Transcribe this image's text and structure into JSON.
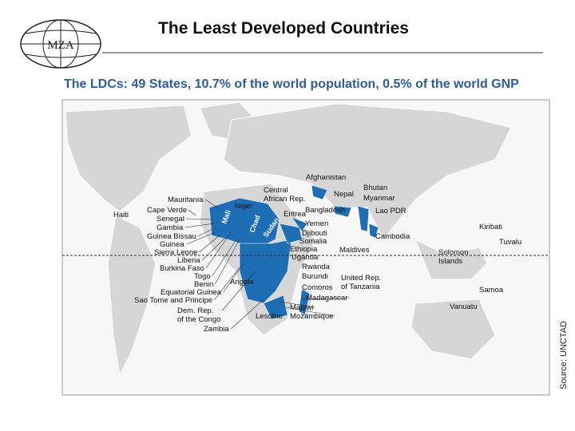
{
  "header": {
    "logo": "MZA",
    "title": "The Least Developed Countries"
  },
  "map": {
    "subtitle": "The LDCs: 49 States, 10.7% of the world population, 0.5% of the world GNP",
    "source": "Source: UNCTAD",
    "labels": [
      {
        "lines": [
          "Afghanistan"
        ]
      },
      {
        "lines": [
          "Nepal"
        ]
      },
      {
        "lines": [
          "Bhutan"
        ]
      },
      {
        "lines": [
          "Myanmar"
        ]
      },
      {
        "lines": [
          "Bangladesh"
        ]
      },
      {
        "lines": [
          "Lao PDR"
        ]
      },
      {
        "lines": [
          "Cambodia"
        ]
      },
      {
        "lines": [
          "Central",
          "African Rep."
        ]
      },
      {
        "lines": [
          "Niger"
        ]
      },
      {
        "lines": [
          "Mauritania"
        ]
      },
      {
        "lines": [
          "Cape Verde"
        ]
      },
      {
        "lines": [
          "Senegal"
        ]
      },
      {
        "lines": [
          "Gambia"
        ]
      },
      {
        "lines": [
          "Guinea Bissau"
        ]
      },
      {
        "lines": [
          "Guinea"
        ]
      },
      {
        "lines": [
          "Sierra Leone"
        ]
      },
      {
        "lines": [
          "Liberia"
        ]
      },
      {
        "lines": [
          "Burkina Faso"
        ]
      },
      {
        "lines": [
          "Togo"
        ]
      },
      {
        "lines": [
          "Benin"
        ]
      },
      {
        "lines": [
          "Equatorial Guinea"
        ]
      },
      {
        "lines": [
          "Sao Tome and Principe"
        ]
      },
      {
        "lines": [
          "Dem. Rep.",
          "of the Congo"
        ]
      },
      {
        "lines": [
          "Zambia"
        ]
      },
      {
        "lines": [
          "Haiti"
        ]
      },
      {
        "lines": [
          "Eritrea"
        ]
      },
      {
        "lines": [
          "Yemen"
        ]
      },
      {
        "lines": [
          "Djibouti"
        ]
      },
      {
        "lines": [
          "Somalia"
        ]
      },
      {
        "lines": [
          "Ethiopia"
        ]
      },
      {
        "lines": [
          "Maldives"
        ]
      },
      {
        "lines": [
          "Uganda"
        ]
      },
      {
        "lines": [
          "Rwanda"
        ]
      },
      {
        "lines": [
          "Burundi"
        ]
      },
      {
        "lines": [
          "United Rep.",
          "of Tanzania"
        ]
      },
      {
        "lines": [
          "Comoros"
        ]
      },
      {
        "lines": [
          "Madagascar"
        ]
      },
      {
        "lines": [
          "Malawi"
        ]
      },
      {
        "lines": [
          "Mozambique"
        ]
      },
      {
        "lines": [
          "Lesotho"
        ]
      },
      {
        "lines": [
          "Angola"
        ]
      },
      {
        "lines": [
          "Mali"
        ]
      },
      {
        "lines": [
          "Chad"
        ]
      },
      {
        "lines": [
          "Sudan"
        ]
      },
      {
        "lines": [
          "Kiribati"
        ]
      },
      {
        "lines": [
          "Solomon",
          "Islands"
        ]
      },
      {
        "lines": [
          "Tuvalu"
        ]
      },
      {
        "lines": [
          "Samoa"
        ]
      },
      {
        "lines": [
          "Vanuatu"
        ]
      }
    ]
  }
}
